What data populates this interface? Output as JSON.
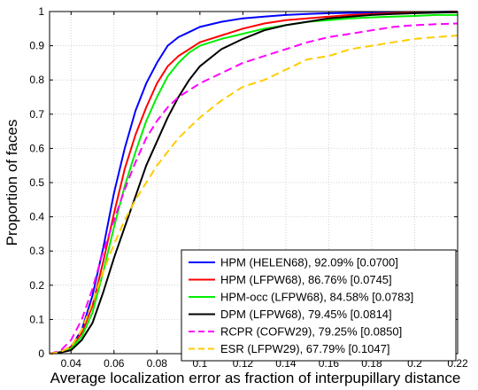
{
  "chart_data": {
    "type": "line",
    "title": "",
    "xlabel": "Average localization error as fraction of interpupillary distance",
    "ylabel": "Proportion of faces",
    "xlim": [
      0.03,
      0.22
    ],
    "ylim": [
      0,
      1
    ],
    "xticks": [
      "0.04",
      "0.06",
      "0.08",
      "0.1",
      "0.12",
      "0.14",
      "0.16",
      "0.18",
      "0.2",
      "0.22"
    ],
    "yticks": [
      "0",
      "0.1",
      "0.2",
      "0.3",
      "0.4",
      "0.5",
      "0.6",
      "0.7",
      "0.8",
      "0.9",
      "1"
    ],
    "grid": true,
    "legend_position": "bottom-right",
    "series": [
      {
        "name": "HPM (HELEN68), 92.09% [0.0700]",
        "color": "#0000ff",
        "dash": "solid",
        "x": [
          0.03,
          0.035,
          0.04,
          0.045,
          0.05,
          0.055,
          0.06,
          0.065,
          0.07,
          0.075,
          0.08,
          0.085,
          0.09,
          0.095,
          0.1,
          0.11,
          0.12,
          0.13,
          0.14,
          0.15,
          0.16,
          0.17,
          0.18,
          0.19,
          0.2,
          0.21,
          0.22
        ],
        "y": [
          0,
          0.005,
          0.02,
          0.07,
          0.17,
          0.31,
          0.47,
          0.6,
          0.71,
          0.79,
          0.85,
          0.9,
          0.925,
          0.94,
          0.955,
          0.97,
          0.98,
          0.985,
          0.99,
          0.993,
          0.995,
          0.996,
          0.997,
          0.998,
          0.998,
          0.999,
          1.0
        ]
      },
      {
        "name": "HPM (LFPW68), 86.76% [0.0745]",
        "color": "#ff0000",
        "dash": "solid",
        "x": [
          0.03,
          0.035,
          0.04,
          0.045,
          0.05,
          0.055,
          0.06,
          0.065,
          0.07,
          0.075,
          0.08,
          0.085,
          0.09,
          0.095,
          0.1,
          0.11,
          0.12,
          0.13,
          0.14,
          0.15,
          0.16,
          0.17,
          0.18,
          0.19,
          0.2,
          0.21,
          0.22
        ],
        "y": [
          0,
          0.005,
          0.02,
          0.06,
          0.14,
          0.27,
          0.41,
          0.54,
          0.64,
          0.72,
          0.79,
          0.84,
          0.87,
          0.89,
          0.91,
          0.93,
          0.95,
          0.965,
          0.975,
          0.98,
          0.985,
          0.99,
          0.993,
          0.995,
          0.997,
          0.998,
          1.0
        ]
      },
      {
        "name": "HPM-occ (LFPW68), 84.58% [0.0783]",
        "color": "#00ee00",
        "dash": "solid",
        "x": [
          0.03,
          0.035,
          0.04,
          0.045,
          0.05,
          0.055,
          0.06,
          0.065,
          0.07,
          0.075,
          0.08,
          0.085,
          0.09,
          0.095,
          0.1,
          0.11,
          0.12,
          0.13,
          0.14,
          0.15,
          0.16,
          0.17,
          0.18,
          0.19,
          0.2,
          0.21,
          0.22
        ],
        "y": [
          0,
          0.004,
          0.015,
          0.05,
          0.12,
          0.24,
          0.37,
          0.49,
          0.59,
          0.68,
          0.75,
          0.81,
          0.85,
          0.88,
          0.9,
          0.92,
          0.935,
          0.95,
          0.96,
          0.97,
          0.975,
          0.98,
          0.983,
          0.985,
          0.987,
          0.99,
          0.99
        ]
      },
      {
        "name": "DPM (LFPW68), 79.45% [0.0814]",
        "color": "#000000",
        "dash": "solid",
        "x": [
          0.03,
          0.035,
          0.04,
          0.045,
          0.05,
          0.055,
          0.06,
          0.065,
          0.07,
          0.075,
          0.08,
          0.085,
          0.09,
          0.095,
          0.1,
          0.11,
          0.12,
          0.13,
          0.14,
          0.15,
          0.16,
          0.17,
          0.18,
          0.19,
          0.2,
          0.21,
          0.22
        ],
        "y": [
          0,
          0.003,
          0.01,
          0.04,
          0.09,
          0.18,
          0.28,
          0.37,
          0.46,
          0.55,
          0.62,
          0.69,
          0.75,
          0.8,
          0.84,
          0.89,
          0.92,
          0.945,
          0.96,
          0.97,
          0.98,
          0.985,
          0.99,
          0.993,
          0.995,
          0.997,
          0.998
        ]
      },
      {
        "name": "RCPR (COFW29), 79.25% [0.0850]",
        "color": "#ff00ff",
        "dash": "dashed",
        "x": [
          0.03,
          0.035,
          0.04,
          0.045,
          0.05,
          0.055,
          0.06,
          0.065,
          0.07,
          0.075,
          0.08,
          0.085,
          0.09,
          0.095,
          0.1,
          0.11,
          0.12,
          0.13,
          0.14,
          0.15,
          0.16,
          0.17,
          0.18,
          0.19,
          0.2,
          0.21,
          0.22
        ],
        "y": [
          0,
          0.008,
          0.04,
          0.1,
          0.19,
          0.3,
          0.39,
          0.48,
          0.56,
          0.63,
          0.68,
          0.72,
          0.75,
          0.77,
          0.79,
          0.82,
          0.85,
          0.87,
          0.89,
          0.91,
          0.925,
          0.935,
          0.945,
          0.955,
          0.96,
          0.963,
          0.965
        ]
      },
      {
        "name": "ESR (LFPW29), 67.79% [0.1047]",
        "color": "#ffcc00",
        "dash": "dashed",
        "x": [
          0.03,
          0.035,
          0.04,
          0.045,
          0.05,
          0.055,
          0.06,
          0.065,
          0.07,
          0.075,
          0.08,
          0.085,
          0.09,
          0.095,
          0.1,
          0.11,
          0.12,
          0.13,
          0.14,
          0.15,
          0.16,
          0.17,
          0.18,
          0.19,
          0.2,
          0.21,
          0.22
        ],
        "y": [
          0,
          0.005,
          0.02,
          0.07,
          0.15,
          0.24,
          0.32,
          0.39,
          0.45,
          0.5,
          0.55,
          0.59,
          0.63,
          0.66,
          0.69,
          0.74,
          0.78,
          0.8,
          0.83,
          0.86,
          0.87,
          0.89,
          0.9,
          0.91,
          0.92,
          0.925,
          0.93
        ]
      }
    ]
  }
}
